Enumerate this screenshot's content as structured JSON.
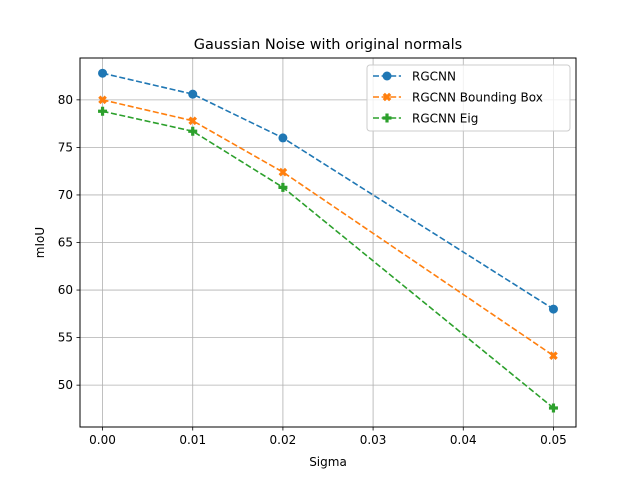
{
  "chart_data": {
    "type": "line",
    "title": "Gaussian Noise with original normals",
    "xlabel": "Sigma",
    "ylabel": "mIoU",
    "x": [
      0.0,
      0.01,
      0.02,
      0.05
    ],
    "xlim": [
      -0.0025,
      0.0525
    ],
    "ylim": [
      45.6,
      84.4
    ],
    "xticks": [
      0.0,
      0.01,
      0.02,
      0.03,
      0.04,
      0.05
    ],
    "xtick_labels": [
      "0.00",
      "0.01",
      "0.02",
      "0.03",
      "0.04",
      "0.05"
    ],
    "yticks": [
      50,
      55,
      60,
      65,
      70,
      75,
      80
    ],
    "ytick_labels": [
      "50",
      "55",
      "60",
      "65",
      "70",
      "75",
      "80"
    ],
    "grid": true,
    "legend_position": "top-right",
    "series": [
      {
        "name": "RGCNN",
        "values": [
          82.8,
          80.6,
          76.0,
          58.0
        ],
        "color": "#1f77b4",
        "marker": "circle",
        "linestyle": "dashed"
      },
      {
        "name": "RGCNN Bounding Box",
        "values": [
          80.0,
          77.8,
          72.4,
          53.1
        ],
        "color": "#ff7f0e",
        "marker": "x-filled",
        "linestyle": "dashed"
      },
      {
        "name": "RGCNN Eig",
        "values": [
          78.8,
          76.7,
          70.8,
          47.6
        ],
        "color": "#2ca02c",
        "marker": "plus-filled",
        "linestyle": "dashed"
      }
    ]
  }
}
